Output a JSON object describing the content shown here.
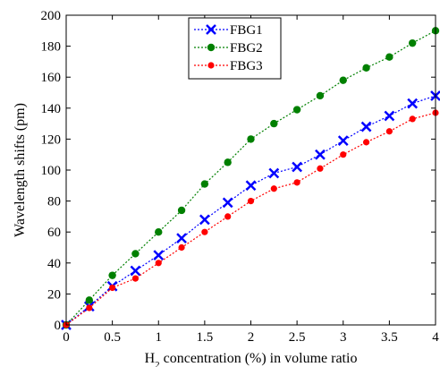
{
  "chart_data": {
    "type": "line",
    "title": "",
    "xlabel": {
      "prefix": "H",
      "subscript": "2",
      "suffix": " concentration (%) in volume ratio"
    },
    "ylabel": "Wavelength shifts (pm)",
    "xlim": [
      0,
      4
    ],
    "ylim": [
      0,
      200
    ],
    "xticks": [
      "0",
      "0.5",
      "1",
      "1.5",
      "2",
      "2.5",
      "3",
      "3.5",
      "4"
    ],
    "yticks": [
      "0",
      "20",
      "40",
      "60",
      "80",
      "100",
      "120",
      "140",
      "160",
      "180",
      "200"
    ],
    "grid": false,
    "legend_position": "top-center",
    "x": [
      0,
      0.25,
      0.5,
      0.75,
      1,
      1.25,
      1.5,
      1.75,
      2,
      2.25,
      2.5,
      2.75,
      3,
      3.25,
      3.5,
      3.75,
      4
    ],
    "series": [
      {
        "name": "FBG1",
        "color": "#0000ff",
        "marker": "x",
        "values": [
          0,
          12,
          25,
          35,
          45,
          56,
          68,
          79,
          90,
          98,
          102,
          110,
          119,
          128,
          135,
          143,
          148
        ]
      },
      {
        "name": "FBG2",
        "color": "#008000",
        "marker": "circle",
        "values": [
          0,
          16,
          32,
          46,
          60,
          74,
          91,
          105,
          120,
          130,
          139,
          148,
          158,
          166,
          173,
          182,
          190
        ]
      },
      {
        "name": "FBG3",
        "color": "#ff0000",
        "marker": "dot",
        "values": [
          0,
          11,
          24,
          30,
          40,
          50,
          60,
          70,
          80,
          88,
          92,
          101,
          110,
          118,
          125,
          133,
          137
        ]
      }
    ]
  }
}
